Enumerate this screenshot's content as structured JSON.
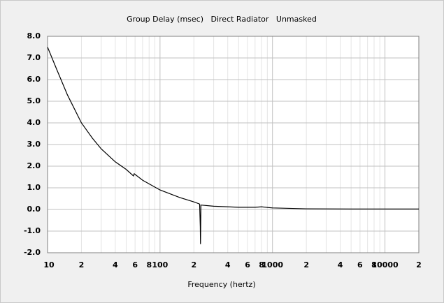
{
  "chart_data": {
    "type": "line",
    "title": "Group Delay (msec)   Direct Radiator   Unmasked",
    "x_label": "Frequency (hertz)",
    "xscale": "log",
    "grid": true,
    "x": [
      10,
      12,
      15,
      20,
      25,
      30,
      40,
      50,
      58,
      59,
      70,
      100,
      150,
      200,
      225,
      228,
      229,
      231,
      235,
      300,
      500,
      700,
      800,
      1000,
      2000,
      5000,
      20000
    ],
    "series": [
      {
        "color": "#000000",
        "values": [
          7.5,
          6.5,
          5.3,
          4.0,
          3.3,
          2.8,
          2.2,
          1.85,
          1.55,
          1.65,
          1.35,
          0.9,
          0.55,
          0.35,
          0.25,
          -0.8,
          -1.6,
          0.2,
          0.2,
          0.15,
          0.1,
          0.1,
          0.12,
          0.07,
          0.03,
          0.02,
          0.02
        ]
      }
    ],
    "xlim": [
      10,
      20000
    ],
    "xticks": [
      10,
      {
        "value": 20,
        "label": "2"
      },
      {
        "value": 40,
        "label": "4"
      },
      {
        "value": 60,
        "label": "6"
      },
      {
        "value": 80,
        "label": "8"
      },
      100,
      {
        "value": 200,
        "label": "2"
      },
      {
        "value": 400,
        "label": "4"
      },
      {
        "value": 600,
        "label": "6"
      },
      {
        "value": 800,
        "label": "8"
      },
      1000,
      {
        "value": 2000,
        "label": "2"
      },
      {
        "value": 4000,
        "label": "4"
      },
      {
        "value": 6000,
        "label": "6"
      },
      {
        "value": 8000,
        "label": "8"
      },
      10000,
      {
        "value": 20000,
        "label": "2"
      }
    ],
    "xminorticks": [
      30,
      50,
      70,
      90,
      300,
      500,
      700,
      900,
      3000,
      5000,
      7000,
      9000
    ],
    "ylim": [
      -2,
      8
    ],
    "yticks": [
      {
        "value": -2,
        "label": "-2.0"
      },
      {
        "value": -1,
        "label": "-1.0"
      },
      {
        "value": 0,
        "label": "0.0"
      },
      {
        "value": 1,
        "label": "1.0"
      },
      {
        "value": 2,
        "label": "2.0"
      },
      {
        "value": 3,
        "label": "3.0"
      },
      {
        "value": 4,
        "label": "4.0"
      },
      {
        "value": 5,
        "label": "5.0"
      },
      {
        "value": 6,
        "label": "6.0"
      },
      {
        "value": 7,
        "label": "7.0"
      },
      {
        "value": 8,
        "label": "8.0"
      }
    ]
  }
}
